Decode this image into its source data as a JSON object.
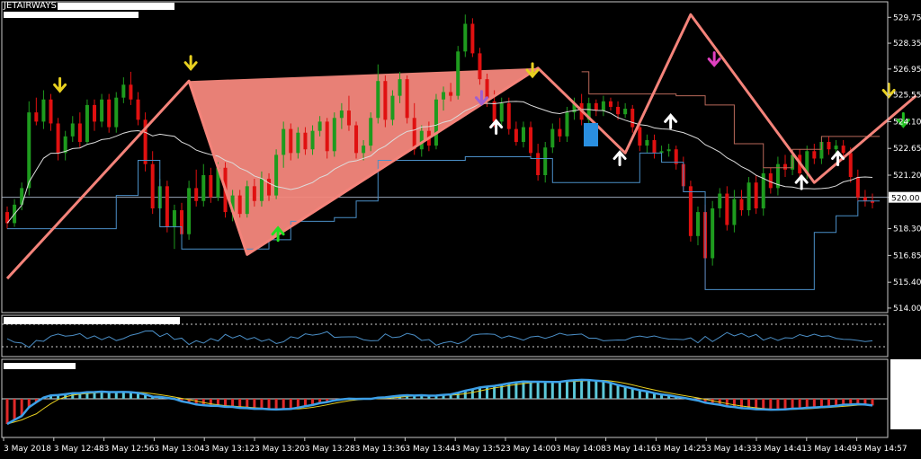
{
  "symbol": "JETAIRWAYS",
  "current_price": "520.00",
  "colors": {
    "background": "#000000",
    "bull": "#1e9b1e",
    "bear": "#e01010",
    "zigzag": "#f4837a",
    "channel_fill": "#f4877c",
    "ma_line": "#dcdcdc",
    "trail_line": "#4b8fc7",
    "resistance_line": "#b8685a",
    "macd_line": "#3da0e8",
    "signal_line": "#e8d020",
    "hist_pos": "#5bc8d8",
    "hist_neg": "#e02a2a"
  },
  "chart_data": {
    "type": "candlestick",
    "price_axis_labels": [
      "529.75",
      "528.35",
      "526.95",
      "525.55",
      "524.10",
      "522.65",
      "521.20",
      "520.00",
      "518.30",
      "516.85",
      "515.40",
      "514.00"
    ],
    "time_axis_labels": [
      "3 May 2018",
      "3 May 12:48",
      "3 May 12:56",
      "3 May 13:04",
      "3 May 13:12",
      "3 May 13:20",
      "3 May 13:28",
      "3 May 13:36",
      "3 May 13:44",
      "3 May 13:52",
      "3 May 14:00",
      "3 May 14:08",
      "3 May 14:16",
      "3 May 14:25",
      "3 May 14:33",
      "3 May 14:41",
      "3 May 14:49",
      "3 May 14:57"
    ],
    "ylim": [
      513.9,
      530.3
    ],
    "price_line": 520.0,
    "zigzag_points": [
      [
        0,
        515.6
      ],
      [
        25,
        526.3
      ],
      [
        33,
        516.9
      ],
      [
        73,
        527.0
      ],
      [
        85,
        522.4
      ],
      [
        94,
        529.9
      ],
      [
        111,
        520.8
      ],
      [
        125,
        525.5
      ]
    ],
    "candles_ohlc": [
      [
        519.2,
        519.5,
        518.3,
        518.6
      ],
      [
        518.6,
        519.9,
        518.4,
        519.6
      ],
      [
        519.6,
        520.8,
        519.3,
        520.5
      ],
      [
        520.5,
        525.2,
        520.1,
        524.6
      ],
      [
        524.6,
        525.4,
        523.9,
        524.1
      ],
      [
        524.1,
        525.8,
        523.7,
        525.3
      ],
      [
        525.3,
        525.6,
        523.6,
        524.0
      ],
      [
        524.0,
        524.3,
        522.0,
        522.4
      ],
      [
        522.4,
        523.6,
        522.0,
        523.3
      ],
      [
        523.3,
        524.4,
        523.0,
        524.0
      ],
      [
        524.0,
        524.6,
        522.7,
        523.0
      ],
      [
        523.0,
        525.3,
        522.9,
        525.0
      ],
      [
        525.0,
        525.3,
        523.6,
        524.1
      ],
      [
        524.1,
        525.6,
        523.8,
        525.3
      ],
      [
        525.3,
        525.6,
        523.5,
        523.8
      ],
      [
        523.8,
        525.7,
        523.5,
        525.4
      ],
      [
        525.4,
        526.5,
        525.1,
        526.1
      ],
      [
        526.1,
        526.8,
        525.0,
        525.3
      ],
      [
        525.3,
        525.7,
        523.9,
        524.2
      ],
      [
        524.2,
        524.6,
        521.4,
        521.8
      ],
      [
        521.8,
        522.5,
        519.1,
        519.4
      ],
      [
        519.4,
        521.0,
        518.4,
        520.6
      ],
      [
        520.6,
        520.9,
        518.1,
        518.4
      ],
      [
        518.4,
        519.6,
        517.2,
        519.3
      ],
      [
        519.3,
        519.7,
        517.8,
        518.0
      ],
      [
        518.0,
        520.9,
        517.7,
        520.5
      ],
      [
        520.5,
        521.5,
        519.5,
        519.8
      ],
      [
        519.8,
        521.8,
        519.5,
        521.2
      ],
      [
        521.2,
        521.6,
        519.7,
        520.0
      ],
      [
        520.0,
        521.9,
        519.8,
        521.6
      ],
      [
        521.6,
        521.9,
        518.9,
        519.2
      ],
      [
        519.2,
        520.4,
        518.7,
        520.1
      ],
      [
        520.1,
        520.4,
        518.9,
        519.1
      ],
      [
        519.1,
        520.9,
        518.9,
        520.6
      ],
      [
        520.6,
        521.0,
        519.5,
        519.8
      ],
      [
        519.8,
        521.4,
        519.5,
        521.0
      ],
      [
        521.0,
        521.3,
        519.8,
        520.1
      ],
      [
        520.1,
        522.6,
        519.9,
        522.3
      ],
      [
        522.3,
        524.1,
        521.6,
        523.7
      ],
      [
        523.7,
        524.0,
        522.0,
        522.4
      ],
      [
        522.4,
        523.8,
        522.1,
        523.5
      ],
      [
        523.5,
        523.8,
        522.3,
        522.6
      ],
      [
        522.6,
        523.9,
        522.3,
        523.6
      ],
      [
        523.6,
        524.4,
        523.3,
        524.1
      ],
      [
        524.1,
        524.3,
        522.1,
        522.5
      ],
      [
        522.5,
        524.6,
        522.2,
        524.3
      ],
      [
        524.3,
        525.1,
        523.7,
        524.7
      ],
      [
        524.7,
        525.5,
        523.6,
        523.9
      ],
      [
        523.9,
        524.1,
        522.1,
        522.4
      ],
      [
        522.4,
        523.1,
        522.0,
        522.8
      ],
      [
        522.8,
        524.6,
        522.5,
        524.3
      ],
      [
        524.3,
        527.2,
        524.0,
        526.3
      ],
      [
        526.3,
        526.6,
        523.8,
        524.2
      ],
      [
        524.2,
        525.8,
        523.9,
        525.5
      ],
      [
        525.5,
        526.8,
        525.1,
        526.4
      ],
      [
        526.4,
        526.6,
        524.0,
        524.3
      ],
      [
        524.3,
        525.1,
        522.3,
        522.6
      ],
      [
        522.6,
        523.9,
        522.2,
        523.6
      ],
      [
        523.6,
        524.1,
        522.5,
        522.8
      ],
      [
        522.8,
        525.6,
        522.6,
        525.3
      ],
      [
        525.3,
        526.0,
        524.7,
        525.7
      ],
      [
        525.7,
        526.2,
        525.2,
        525.5
      ],
      [
        525.5,
        528.2,
        525.3,
        527.9
      ],
      [
        527.9,
        529.9,
        527.6,
        529.4
      ],
      [
        529.4,
        529.7,
        527.6,
        527.8
      ],
      [
        527.8,
        528.1,
        526.1,
        526.4
      ],
      [
        526.4,
        526.7,
        524.9,
        525.2
      ],
      [
        525.2,
        525.8,
        523.8,
        524.1
      ],
      [
        524.1,
        525.4,
        523.8,
        525.1
      ],
      [
        525.1,
        525.4,
        523.4,
        523.7
      ],
      [
        523.7,
        524.1,
        522.8,
        523.0
      ],
      [
        523.0,
        524.1,
        522.7,
        523.8
      ],
      [
        523.8,
        524.1,
        522.1,
        522.4
      ],
      [
        522.4,
        522.9,
        520.9,
        521.2
      ],
      [
        521.2,
        523.0,
        520.8,
        522.7
      ],
      [
        522.7,
        524.0,
        522.4,
        523.7
      ],
      [
        523.7,
        524.3,
        523.0,
        523.3
      ],
      [
        523.3,
        524.9,
        523.0,
        524.6
      ],
      [
        524.6,
        525.4,
        524.2,
        525.1
      ],
      [
        525.1,
        525.6,
        523.9,
        524.2
      ],
      [
        524.2,
        525.4,
        524.0,
        525.1
      ],
      [
        525.1,
        525.3,
        524.4,
        524.7
      ],
      [
        524.7,
        525.5,
        524.4,
        525.2
      ],
      [
        525.2,
        525.4,
        524.7,
        524.9
      ],
      [
        524.9,
        525.2,
        524.2,
        524.5
      ],
      [
        524.5,
        525.1,
        524.3,
        524.8
      ],
      [
        524.8,
        525.0,
        523.5,
        523.8
      ],
      [
        523.8,
        524.1,
        522.5,
        522.8
      ],
      [
        522.8,
        523.4,
        522.4,
        523.1
      ],
      [
        523.1,
        523.4,
        522.1,
        522.4
      ],
      [
        522.4,
        522.8,
        521.9,
        522.5
      ],
      [
        522.5,
        522.9,
        522.2,
        522.6
      ],
      [
        522.6,
        522.8,
        521.5,
        521.8
      ],
      [
        521.8,
        522.2,
        520.3,
        520.6
      ],
      [
        520.6,
        520.9,
        517.6,
        517.9
      ],
      [
        517.9,
        519.5,
        517.4,
        519.2
      ],
      [
        519.2,
        519.6,
        515.0,
        516.7
      ],
      [
        516.7,
        519.8,
        516.3,
        519.4
      ],
      [
        519.4,
        520.5,
        518.9,
        520.2
      ],
      [
        520.2,
        520.6,
        518.2,
        518.5
      ],
      [
        518.5,
        520.4,
        518.1,
        519.9
      ],
      [
        519.9,
        520.4,
        519.0,
        519.3
      ],
      [
        519.3,
        521.1,
        519.0,
        520.8
      ],
      [
        520.8,
        521.2,
        519.1,
        519.4
      ],
      [
        519.4,
        521.6,
        519.0,
        521.3
      ],
      [
        521.3,
        521.6,
        520.2,
        520.5
      ],
      [
        520.5,
        522.2,
        520.1,
        521.8
      ],
      [
        521.8,
        522.3,
        521.1,
        521.5
      ],
      [
        521.5,
        522.6,
        521.2,
        522.3
      ],
      [
        522.3,
        522.6,
        521.0,
        521.3
      ],
      [
        521.3,
        522.8,
        521.0,
        522.5
      ],
      [
        522.5,
        522.9,
        521.8,
        522.1
      ],
      [
        522.1,
        523.3,
        521.8,
        523.0
      ],
      [
        523.0,
        523.3,
        522.3,
        522.6
      ],
      [
        522.6,
        523.1,
        522.3,
        522.8
      ],
      [
        522.8,
        523.1,
        522.0,
        522.4
      ],
      [
        522.4,
        522.7,
        520.8,
        521.1
      ],
      [
        521.1,
        521.5,
        519.8,
        520.0
      ],
      [
        520.0,
        520.4,
        519.5,
        519.8
      ],
      [
        519.8,
        520.2,
        519.4,
        519.7
      ]
    ],
    "indicator_panels": [
      "oscillator",
      "histogram_macd"
    ]
  }
}
